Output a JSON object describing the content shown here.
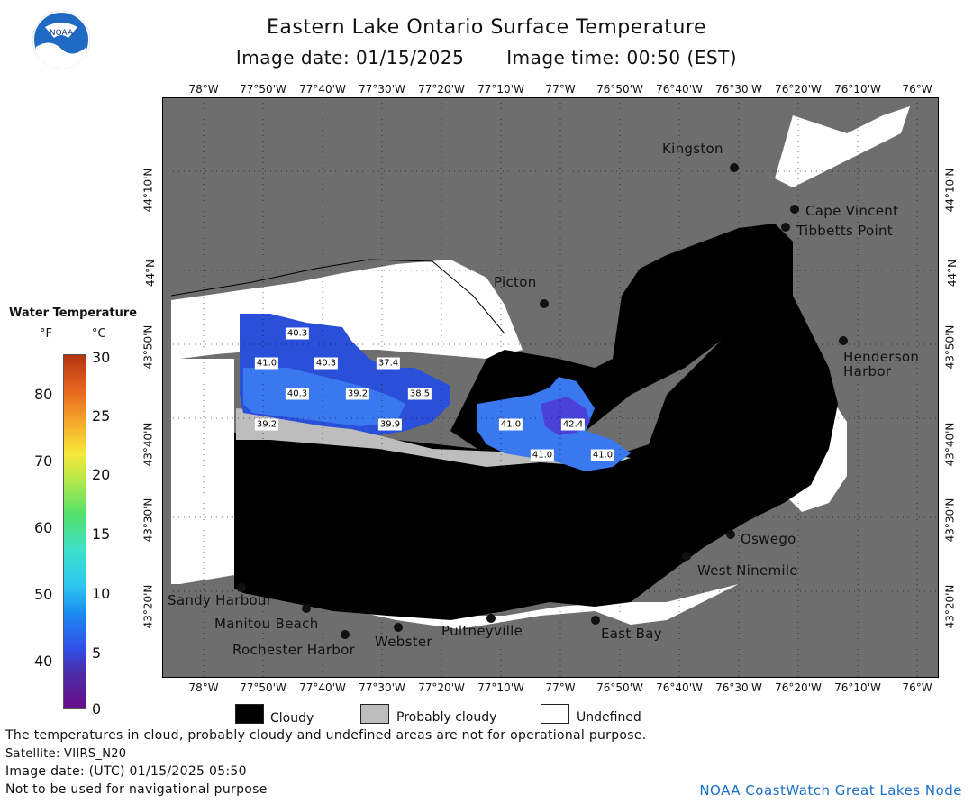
{
  "title": "Eastern Lake Ontario Surface Temperature",
  "image_date_label": "Image date: 01/15/2025",
  "image_time_label": "Image time: 00:50 (EST)",
  "logo_text": "NOAA",
  "lon_ticks": [
    "78°W",
    "77°50'W",
    "77°40'W",
    "77°30'W",
    "77°20'W",
    "77°10'W",
    "77°W",
    "76°50'W",
    "76°40'W",
    "76°30'W",
    "76°20'W",
    "76°10'W",
    "76°W"
  ],
  "lat_ticks": [
    "44°10'N",
    "44°N",
    "43°50'N",
    "43°40'N",
    "43°30'N",
    "43°20'N"
  ],
  "legend": {
    "title": "Water Temperature",
    "unit_f": "°F",
    "unit_c": "°C",
    "f_ticks": [
      "80",
      "70",
      "60",
      "50",
      "40"
    ],
    "c_ticks": [
      "30",
      "25",
      "20",
      "15",
      "10",
      "5",
      "0"
    ]
  },
  "places": {
    "kingston": "Kingston",
    "cape_vincent": "Cape Vincent",
    "tibbetts": "Tibbetts Point",
    "picton": "Picton",
    "henderson": "Henderson",
    "henderson_harbor": "Harbor",
    "oswego": "Oswego",
    "west_ninemile": "West Ninemile",
    "sandy_harbour": "Sandy Harbour",
    "manitou": "Manitou Beach",
    "rochester": "Rochester Harbor",
    "webster": "Webster",
    "pultneyville": "Pultneyville",
    "east_bay": "East Bay"
  },
  "temps": [
    "40.3",
    "41.0",
    "40.3",
    "37.4",
    "40.3",
    "39.2",
    "38.5",
    "39.2",
    "39.9",
    "41.0",
    "42.4",
    "41.0",
    "41.0"
  ],
  "key": {
    "cloudy": "Cloudy",
    "probably_cloudy": "Probably cloudy",
    "undefined": "Undefined",
    "colors": {
      "cloudy": "#000000",
      "probably_cloudy": "#bdbdbd",
      "undefined": "#ffffff",
      "land": "#6e6e6e"
    }
  },
  "notes": {
    "line1": "The temperatures in cloud, probably cloudy and undefined areas are not for operational purpose.",
    "line2": "Satellite: VIIRS_N20",
    "line3": "Image date: (UTC) 01/15/2025  05:50",
    "line4": "Not to be used for navigational purpose"
  },
  "credit": "NOAA CoastWatch Great Lakes Node"
}
